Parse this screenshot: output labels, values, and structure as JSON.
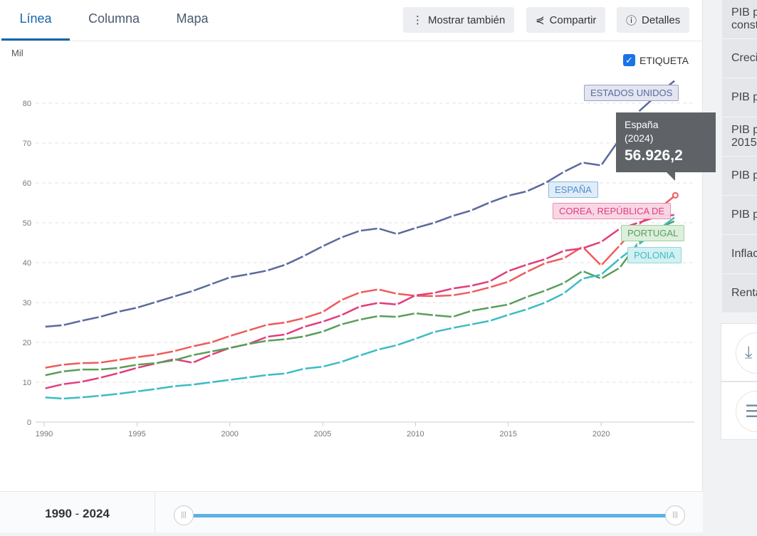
{
  "tabs": [
    {
      "label": "Línea"
    },
    {
      "label": "Columna"
    },
    {
      "label": "Mapa"
    }
  ],
  "buttons": {
    "show_also": "Mostrar también",
    "share": "Compartir",
    "details": "Detalles"
  },
  "label_checkbox": "ETIQUETA",
  "tooltip": {
    "country": "España",
    "year": "(2024)",
    "value": "56.926,2"
  },
  "range": {
    "start": "1990",
    "sep": " - ",
    "end": "2024"
  },
  "sidebar": [
    "PIB p\nconst",
    "Creci",
    "PIB p",
    "PIB p\n2015",
    "PIB p",
    "PIB p",
    "Inflac",
    "Renta"
  ],
  "chart_data": {
    "type": "line",
    "ylabel": "Mil",
    "ylim": [
      0,
      85
    ],
    "yticks": [
      0,
      10,
      20,
      30,
      40,
      50,
      60,
      70,
      80
    ],
    "xticks": [
      1990,
      1995,
      2000,
      2005,
      2010,
      2015,
      2020
    ],
    "xlim": [
      1990,
      2025
    ],
    "x": [
      1990,
      1991,
      1992,
      1993,
      1994,
      1995,
      1996,
      1997,
      1998,
      1999,
      2000,
      2001,
      2002,
      2003,
      2004,
      2005,
      2006,
      2007,
      2008,
      2009,
      2010,
      2011,
      2012,
      2013,
      2014,
      2015,
      2016,
      2017,
      2018,
      2019,
      2020,
      2021,
      2022,
      2023,
      2024
    ],
    "series": [
      {
        "name": "ESTADOS UNIDOS",
        "color": "#5a6a9b",
        "values": [
          23.9,
          24.3,
          25.4,
          26.4,
          27.7,
          28.7,
          30.1,
          31.5,
          32.9,
          34.6,
          36.3,
          37.1,
          38.0,
          39.5,
          41.7,
          44.1,
          46.3,
          48.0,
          48.6,
          47.2,
          48.7,
          50.0,
          51.7,
          53.1,
          55.1,
          56.8,
          57.9,
          60.0,
          62.8,
          65.1,
          64.4,
          71.0,
          77.8,
          82.0,
          85.8
        ]
      },
      {
        "name": "ESPAÑA",
        "color": "#ef5b5b",
        "values": [
          13.6,
          14.4,
          14.8,
          14.9,
          15.6,
          16.3,
          16.9,
          17.8,
          19.0,
          20.0,
          21.6,
          23.0,
          24.4,
          25.0,
          26.1,
          27.6,
          30.6,
          32.5,
          33.3,
          32.2,
          31.7,
          31.6,
          31.8,
          32.6,
          33.8,
          35.2,
          37.7,
          39.9,
          41.1,
          44.0,
          39.3,
          44.3,
          49.5,
          53.1,
          56.9
        ]
      },
      {
        "name": "COREA, REPÚBLICA DE",
        "color": "#e23d7e",
        "values": [
          8.4,
          9.5,
          10.1,
          11.1,
          12.3,
          13.6,
          14.7,
          15.8,
          14.9,
          16.9,
          18.6,
          19.6,
          21.4,
          22.0,
          23.9,
          25.2,
          26.8,
          29.0,
          29.9,
          29.5,
          31.8,
          32.4,
          33.5,
          34.2,
          35.3,
          37.9,
          39.5,
          40.9,
          43.0,
          43.6,
          45.2,
          48.5,
          50.0,
          51.5,
          52.0
        ]
      },
      {
        "name": "PORTUGAL",
        "color": "#5a9e5a",
        "values": [
          11.7,
          12.7,
          13.2,
          13.2,
          13.6,
          14.4,
          14.8,
          15.5,
          16.8,
          17.7,
          18.6,
          19.6,
          20.4,
          20.8,
          21.5,
          22.7,
          24.5,
          25.7,
          26.6,
          26.4,
          27.3,
          26.8,
          26.4,
          27.9,
          28.7,
          29.5,
          31.4,
          33.0,
          34.9,
          37.9,
          36.0,
          38.7,
          45.0,
          48.5,
          50.5
        ]
      },
      {
        "name": "POLONIA",
        "color": "#3bbcc4",
        "values": [
          6.2,
          5.9,
          6.2,
          6.6,
          7.1,
          7.7,
          8.3,
          9.0,
          9.4,
          10.0,
          10.6,
          11.2,
          11.8,
          12.2,
          13.4,
          13.9,
          15.1,
          16.7,
          18.2,
          19.3,
          20.9,
          22.6,
          23.6,
          24.5,
          25.4,
          26.9,
          28.3,
          30.0,
          32.3,
          36.0,
          37.0,
          41.0,
          44.5,
          48.0,
          51.5
        ]
      }
    ]
  }
}
